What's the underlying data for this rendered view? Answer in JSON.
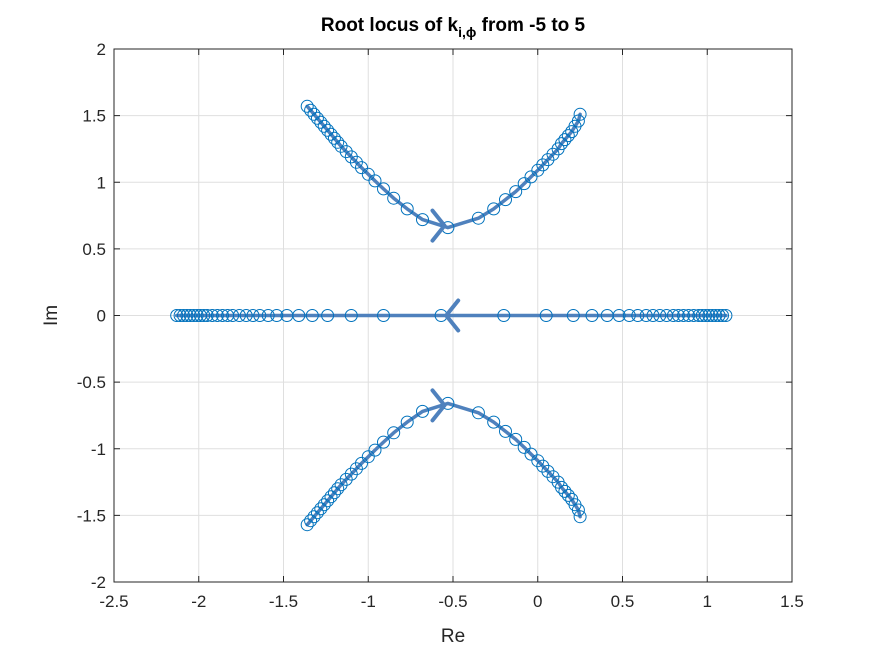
{
  "chart_data": {
    "type": "scatter",
    "title": {
      "prefix": "Root locus of k",
      "subscript": "i,ϕ",
      "suffix": " from -5 to 5"
    },
    "xlabel": "Re",
    "ylabel": "Im",
    "xlim": [
      -2.5,
      1.5
    ],
    "ylim": [
      -2,
      2
    ],
    "xticks": [
      -2.5,
      -2,
      -1.5,
      -1,
      -0.5,
      0,
      0.5,
      1,
      1.5
    ],
    "xtick_labels": [
      "-2.5",
      "-2",
      "-1.5",
      "-1",
      "-0.5",
      "0",
      "0.5",
      "1",
      "1.5"
    ],
    "yticks": [
      -2,
      -1.5,
      -1,
      -0.5,
      0,
      0.5,
      1,
      1.5,
      2
    ],
    "ytick_labels": [
      "-2",
      "-1.5",
      "-1",
      "-0.5",
      "0",
      "0.5",
      "1",
      "1.5",
      "2"
    ],
    "grid": true,
    "marker": "circle",
    "color": "#0072BD",
    "line_color": "#4F81BD",
    "branches": [
      {
        "points": [
          [
            -1.36,
            1.57
          ],
          [
            -1.34,
            1.54
          ],
          [
            -1.32,
            1.51
          ],
          [
            -1.3,
            1.48
          ],
          [
            -1.28,
            1.45
          ],
          [
            -1.26,
            1.42
          ],
          [
            -1.24,
            1.39
          ],
          [
            -1.22,
            1.36
          ],
          [
            -1.2,
            1.33
          ],
          [
            -1.18,
            1.3
          ],
          [
            -1.16,
            1.27
          ],
          [
            -1.13,
            1.23
          ],
          [
            -1.1,
            1.19
          ],
          [
            -1.07,
            1.15
          ],
          [
            -1.04,
            1.11
          ],
          [
            -1.0,
            1.06
          ],
          [
            -0.96,
            1.01
          ],
          [
            -0.91,
            0.95
          ],
          [
            -0.85,
            0.88
          ],
          [
            -0.77,
            0.8
          ],
          [
            -0.68,
            0.72
          ],
          [
            -0.53,
            0.66
          ],
          [
            -0.35,
            0.73
          ],
          [
            -0.26,
            0.8
          ],
          [
            -0.19,
            0.87
          ],
          [
            -0.13,
            0.93
          ],
          [
            -0.08,
            0.99
          ],
          [
            -0.04,
            1.04
          ],
          [
            0.0,
            1.09
          ],
          [
            0.03,
            1.13
          ],
          [
            0.06,
            1.17
          ],
          [
            0.09,
            1.21
          ],
          [
            0.12,
            1.25
          ],
          [
            0.14,
            1.29
          ],
          [
            0.16,
            1.32
          ],
          [
            0.18,
            1.35
          ],
          [
            0.2,
            1.38
          ],
          [
            0.22,
            1.42
          ],
          [
            0.24,
            1.46
          ],
          [
            0.25,
            1.51
          ]
        ],
        "arrow": {
          "at": [
            -0.55,
            0.675
          ],
          "direction": "right"
        }
      },
      {
        "points": [
          [
            -1.36,
            -1.57
          ],
          [
            -1.34,
            -1.54
          ],
          [
            -1.32,
            -1.51
          ],
          [
            -1.3,
            -1.48
          ],
          [
            -1.28,
            -1.45
          ],
          [
            -1.26,
            -1.42
          ],
          [
            -1.24,
            -1.39
          ],
          [
            -1.22,
            -1.36
          ],
          [
            -1.2,
            -1.33
          ],
          [
            -1.18,
            -1.3
          ],
          [
            -1.16,
            -1.27
          ],
          [
            -1.13,
            -1.23
          ],
          [
            -1.1,
            -1.19
          ],
          [
            -1.07,
            -1.15
          ],
          [
            -1.04,
            -1.11
          ],
          [
            -1.0,
            -1.06
          ],
          [
            -0.96,
            -1.01
          ],
          [
            -0.91,
            -0.95
          ],
          [
            -0.85,
            -0.88
          ],
          [
            -0.77,
            -0.8
          ],
          [
            -0.68,
            -0.72
          ],
          [
            -0.53,
            -0.66
          ],
          [
            -0.35,
            -0.73
          ],
          [
            -0.26,
            -0.8
          ],
          [
            -0.19,
            -0.87
          ],
          [
            -0.13,
            -0.93
          ],
          [
            -0.08,
            -0.99
          ],
          [
            -0.04,
            -1.04
          ],
          [
            0.0,
            -1.09
          ],
          [
            0.03,
            -1.13
          ],
          [
            0.06,
            -1.17
          ],
          [
            0.09,
            -1.21
          ],
          [
            0.12,
            -1.25
          ],
          [
            0.14,
            -1.29
          ],
          [
            0.16,
            -1.32
          ],
          [
            0.18,
            -1.35
          ],
          [
            0.2,
            -1.38
          ],
          [
            0.22,
            -1.42
          ],
          [
            0.24,
            -1.46
          ],
          [
            0.25,
            -1.51
          ]
        ],
        "arrow": {
          "at": [
            -0.55,
            -0.675
          ],
          "direction": "right"
        }
      },
      {
        "points": [
          [
            -2.13,
            0
          ],
          [
            -2.11,
            0
          ],
          [
            -2.09,
            0
          ],
          [
            -2.07,
            0
          ],
          [
            -2.05,
            0
          ],
          [
            -2.03,
            0
          ],
          [
            -2.01,
            0
          ],
          [
            -1.99,
            0
          ],
          [
            -1.97,
            0
          ],
          [
            -1.95,
            0
          ],
          [
            -1.92,
            0
          ],
          [
            -1.89,
            0
          ],
          [
            -1.86,
            0
          ],
          [
            -1.83,
            0
          ],
          [
            -1.8,
            0
          ],
          [
            -1.76,
            0
          ],
          [
            -1.72,
            0
          ],
          [
            -1.68,
            0
          ],
          [
            -1.64,
            0
          ],
          [
            -1.59,
            0
          ],
          [
            -1.54,
            0
          ],
          [
            -1.48,
            0
          ],
          [
            -1.41,
            0
          ],
          [
            -1.33,
            0
          ],
          [
            -1.24,
            0
          ],
          [
            -1.1,
            0
          ],
          [
            -0.91,
            0
          ],
          [
            -0.57,
            0
          ],
          [
            -0.2,
            0
          ],
          [
            0.05,
            0
          ],
          [
            0.21,
            0
          ],
          [
            0.32,
            0
          ],
          [
            0.41,
            0
          ],
          [
            0.48,
            0
          ],
          [
            0.54,
            0
          ],
          [
            0.59,
            0
          ],
          [
            0.64,
            0
          ],
          [
            0.68,
            0
          ],
          [
            0.72,
            0
          ],
          [
            0.76,
            0
          ],
          [
            0.8,
            0
          ],
          [
            0.83,
            0
          ],
          [
            0.86,
            0
          ],
          [
            0.89,
            0
          ],
          [
            0.92,
            0
          ],
          [
            0.95,
            0
          ],
          [
            0.97,
            0
          ],
          [
            0.99,
            0
          ],
          [
            1.01,
            0
          ],
          [
            1.03,
            0
          ],
          [
            1.05,
            0
          ],
          [
            1.07,
            0
          ],
          [
            1.09,
            0
          ],
          [
            1.11,
            0
          ]
        ],
        "arrow": {
          "at": [
            -0.54,
            0
          ],
          "direction": "left"
        }
      }
    ]
  }
}
